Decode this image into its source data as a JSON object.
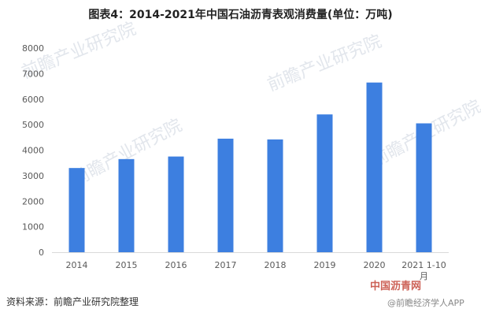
{
  "title": "图表4：2014-2021年中国石油沥青表观消费量(单位：万吨)",
  "source": "资料来源：前瞻产业研究院整理",
  "watermark": "前瞻产业研究院",
  "logo_text": "中国沥青网",
  "logo_subtext": "@前瞻经济学人APP",
  "colors": {
    "bar": "#3d7fe0",
    "axis": "#d9d9d9",
    "tick_text": "#595959"
  },
  "chart_data": {
    "type": "bar",
    "title": "图表4：2014-2021年中国石油沥青表观消费量(单位：万吨)",
    "categories": [
      "2014",
      "2015",
      "2016",
      "2017",
      "2018",
      "2019",
      "2020",
      "2021 1-10月"
    ],
    "category_lines": [
      [
        "2014"
      ],
      [
        "2015"
      ],
      [
        "2016"
      ],
      [
        "2017"
      ],
      [
        "2018"
      ],
      [
        "2019"
      ],
      [
        "2020"
      ],
      [
        "2021 1-10",
        "月"
      ]
    ],
    "values": [
      3300,
      3650,
      3750,
      4450,
      4420,
      5400,
      6650,
      5050
    ],
    "ylim": [
      0,
      8000
    ],
    "yticks": [
      "0",
      "1000",
      "2000",
      "3000",
      "4000",
      "5000",
      "6000",
      "7000",
      "8000"
    ],
    "ytick_values": [
      0,
      1000,
      2000,
      3000,
      4000,
      5000,
      6000,
      7000,
      8000
    ],
    "xlabel": "",
    "ylabel": "",
    "grid": false,
    "legend": "none"
  }
}
